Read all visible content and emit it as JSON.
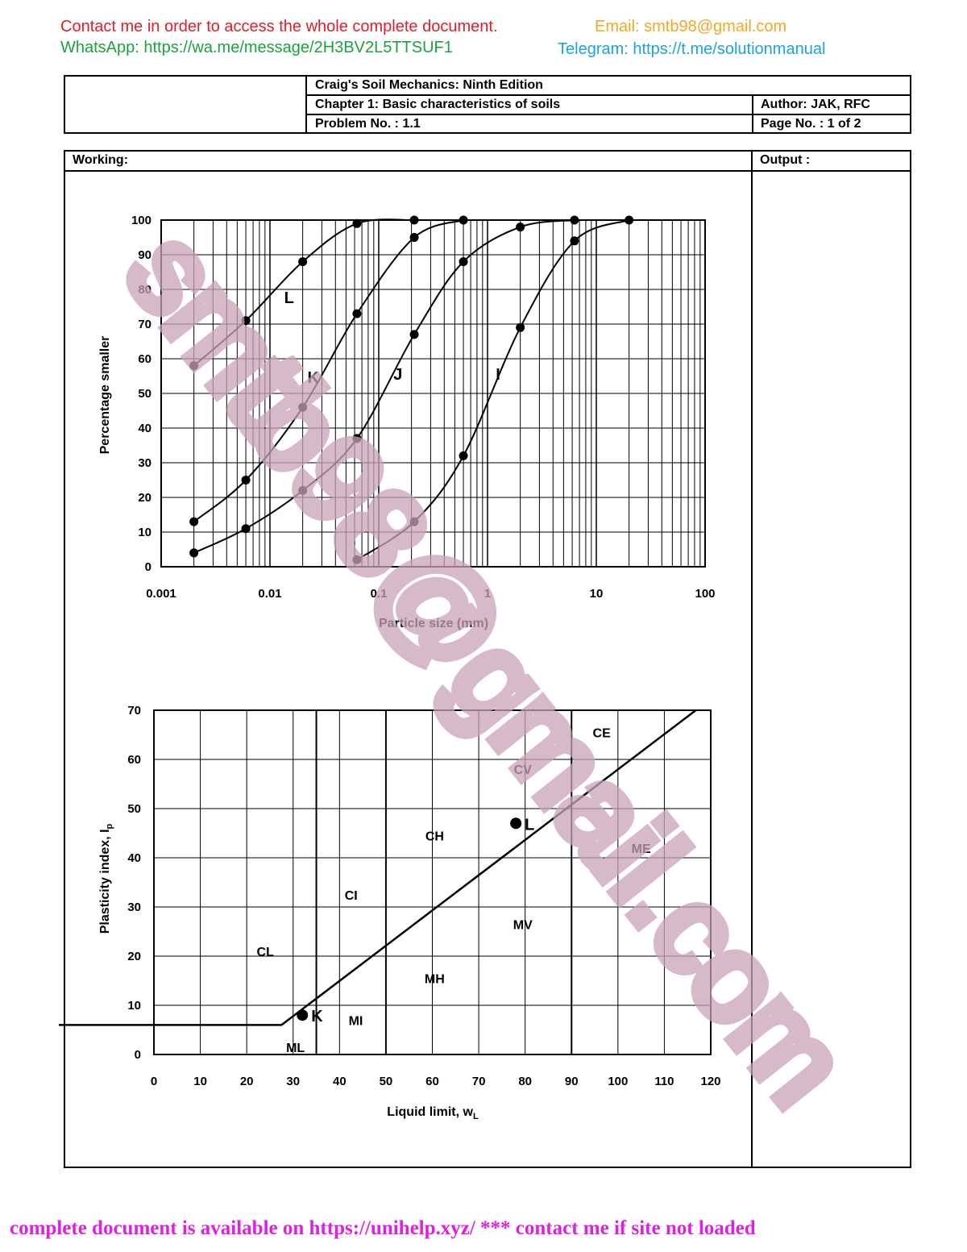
{
  "promo": {
    "contact": "Contact me in order to access the whole complete document.",
    "email": "Email: smtb98@gmail.com",
    "whatsapp": "WhatsApp: https://wa.me/message/2H3BV2L5TTSUF1",
    "telegram": "Telegram: https://t.me/solutionmanual",
    "footer": "complete document is available on https://unihelp.xyz/ *** contact me if site not loaded",
    "watermark": "smtb98@gmail.com"
  },
  "colors": {
    "contact": "#e11d2a",
    "email": "#f5a623",
    "whatsapp": "#1aa33c",
    "telegram": "#1aa3e0",
    "footer": "#e020e0",
    "watermark": "#c9a3b8"
  },
  "header": {
    "book": "Craig's Soil Mechanics: Ninth Edition",
    "chapter": "Chapter 1: Basic characteristics of soils",
    "author": "Author: JAK, RFC",
    "problem": "Problem No. : 1.1",
    "page": "Page No. : 1 of 2"
  },
  "working_label": "Working:",
  "output_label": "Output :",
  "chart_data": [
    {
      "type": "line",
      "xscale": "log",
      "xlabel": "Particle size (mm)",
      "ylabel": "Percentage smaller",
      "xlim": [
        0.001,
        100
      ],
      "ylim": [
        0,
        100
      ],
      "xticks": [
        "0.001",
        "0.01",
        "0.1",
        "1",
        "10",
        "100"
      ],
      "yticks": [
        "0",
        "10",
        "20",
        "30",
        "40",
        "50",
        "60",
        "70",
        "80",
        "90",
        "100"
      ],
      "grid": true,
      "series": [
        {
          "name": "L",
          "x": [
            0.002,
            0.006,
            0.02,
            0.063,
            0.212
          ],
          "y": [
            58,
            71,
            88,
            99,
            100
          ]
        },
        {
          "name": "K",
          "x": [
            0.002,
            0.006,
            0.02,
            0.063,
            0.212,
            0.6
          ],
          "y": [
            13,
            25,
            46,
            73,
            95,
            100
          ]
        },
        {
          "name": "J",
          "x": [
            0.002,
            0.006,
            0.02,
            0.063,
            0.212,
            0.6,
            2,
            6.3
          ],
          "y": [
            4,
            11,
            22,
            37,
            67,
            88,
            98,
            100
          ]
        },
        {
          "name": "I",
          "x": [
            0.063,
            0.212,
            0.6,
            2,
            6.3,
            20
          ],
          "y": [
            2,
            13,
            32,
            69,
            94,
            100
          ]
        }
      ],
      "curve_labels": [
        {
          "text": "L",
          "x": 0.015,
          "y": 76
        },
        {
          "text": "K",
          "x": 0.025,
          "y": 53
        },
        {
          "text": "J",
          "x": 0.15,
          "y": 54
        },
        {
          "text": "I",
          "x": 1.25,
          "y": 54
        }
      ]
    },
    {
      "type": "scatter",
      "xlabel": "Liquid limit, w",
      "xlabel_subscript": "L",
      "ylabel": "Plasticity index, I",
      "ylabel_subscript": "p",
      "xlim": [
        0,
        120
      ],
      "ylim": [
        0,
        70
      ],
      "xticks": [
        "0",
        "10",
        "20",
        "30",
        "40",
        "50",
        "60",
        "70",
        "80",
        "90",
        "100",
        "110",
        "120"
      ],
      "yticks": [
        "0",
        "10",
        "20",
        "30",
        "40",
        "50",
        "60",
        "70"
      ],
      "grid": true,
      "a_line": {
        "x": [
          0,
          27.5,
          120
        ],
        "y": [
          6,
          6,
          72.3
        ]
      },
      "boundaries_x": [
        35,
        50,
        90
      ],
      "points": [
        {
          "name": "K",
          "x": 32,
          "y": 8
        },
        {
          "name": "L",
          "x": 78,
          "y": 47
        }
      ],
      "zones": [
        {
          "text": "CE",
          "x": 96.5,
          "y": 65.5
        },
        {
          "text": "CV",
          "x": 79.5,
          "y": 58
        },
        {
          "text": "CH",
          "x": 60.5,
          "y": 44.5
        },
        {
          "text": "ME",
          "x": 105,
          "y": 42
        },
        {
          "text": "CI",
          "x": 42.5,
          "y": 32.5
        },
        {
          "text": "MV",
          "x": 79.5,
          "y": 26.5
        },
        {
          "text": "CL",
          "x": 24,
          "y": 21
        },
        {
          "text": "MH",
          "x": 60.5,
          "y": 15.5
        },
        {
          "text": "MI",
          "x": 43.5,
          "y": 7
        },
        {
          "text": "ML",
          "x": 30.5,
          "y": 1.5
        }
      ]
    }
  ]
}
